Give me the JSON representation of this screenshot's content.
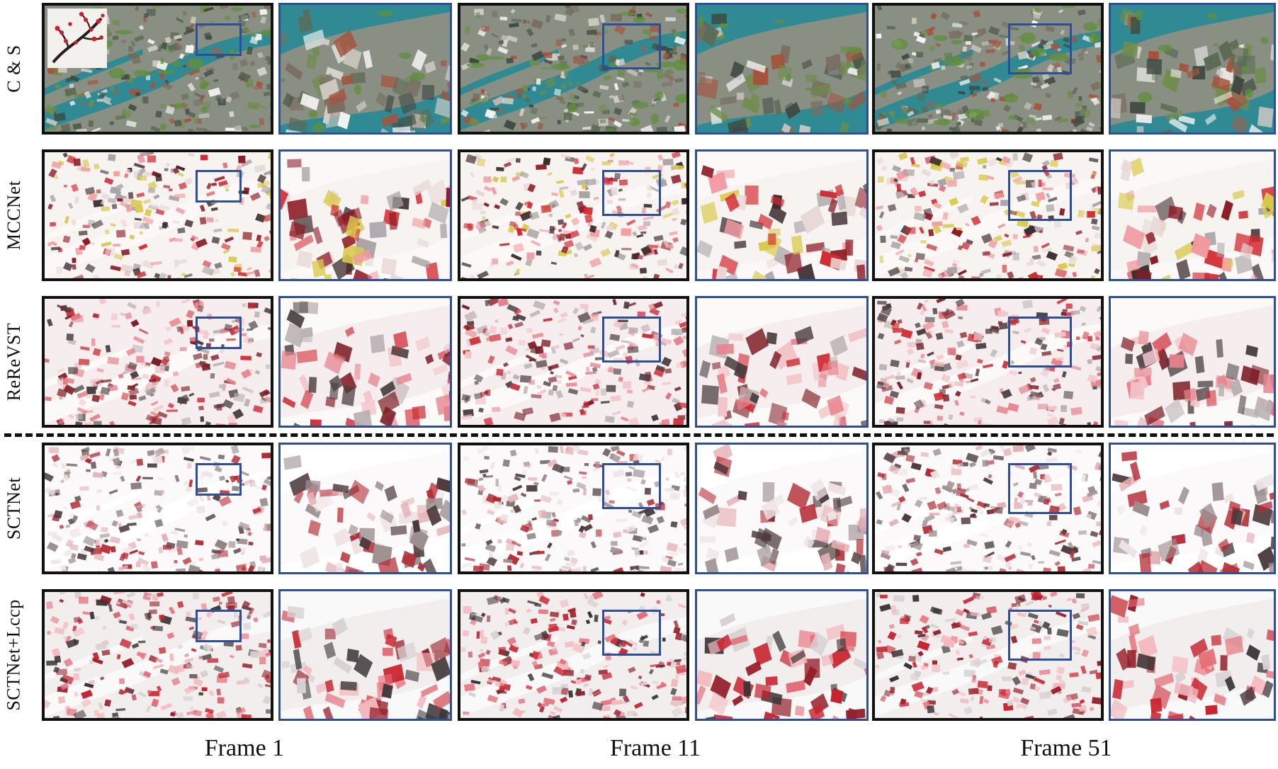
{
  "figure": {
    "rows": [
      {
        "label": "C & S",
        "style": "photo"
      },
      {
        "label": "MCCNet",
        "style": "mcc"
      },
      {
        "label": "ReReVST",
        "style": "rerevst"
      },
      {
        "label": "SCTNet",
        "style": "sct"
      },
      {
        "label": "SCTNet+Lccp",
        "style": "sctl"
      }
    ],
    "frames": [
      "Frame 1",
      "Frame 11",
      "Frame 51"
    ],
    "style_image_icon": "plum-blossom-branch-icon",
    "colors": {
      "panel_border": "#111111",
      "zoom_border": "#2e4f97",
      "river": "#2a8a94",
      "stylized_red": "#c8222d"
    }
  }
}
